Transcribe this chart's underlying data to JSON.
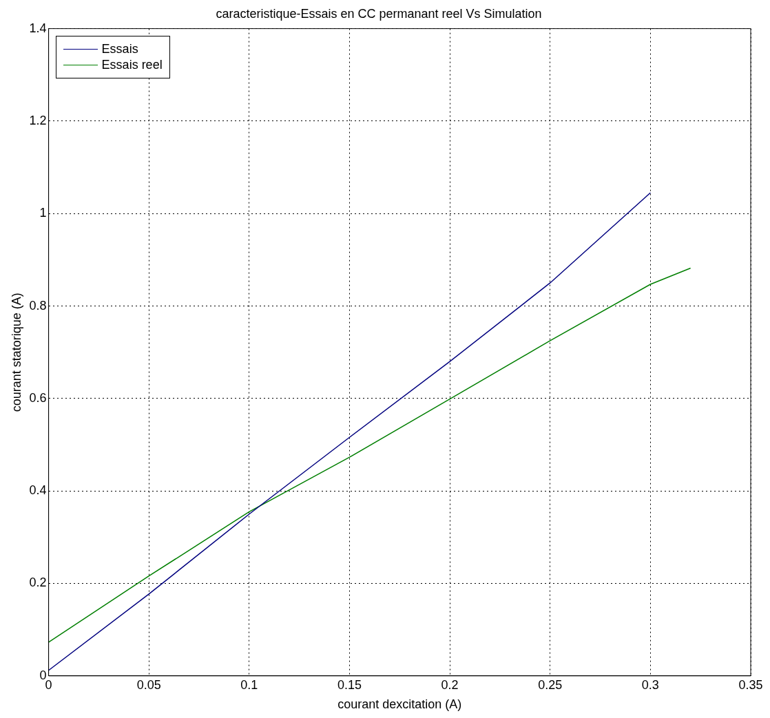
{
  "chart_data": {
    "type": "line",
    "title": "caracteristique-Essais en CC permanant reel Vs Simulation",
    "xlabel": "courant dexcitation (A)",
    "ylabel": "courant statorique (A)",
    "series": [
      {
        "name": "Essais",
        "color": "#00007f",
        "x": [
          0,
          0.05,
          0.1,
          0.15,
          0.2,
          0.25,
          0.3
        ],
        "values": [
          0.012,
          0.177,
          0.35,
          0.516,
          0.68,
          0.85,
          1.045
        ]
      },
      {
        "name": "Essais reel",
        "color": "#007f00",
        "x": [
          0,
          0.05,
          0.1,
          0.15,
          0.2,
          0.25,
          0.3,
          0.32
        ],
        "values": [
          0.073,
          0.216,
          0.355,
          0.473,
          0.599,
          0.725,
          0.847,
          0.882
        ]
      }
    ],
    "xlim": [
      0,
      0.35
    ],
    "xticks": [
      0,
      0.05,
      0.1,
      0.15,
      0.2,
      0.25,
      0.3,
      0.35
    ],
    "ylim": [
      0,
      1.4
    ],
    "yticks": [
      0,
      0.2,
      0.4,
      0.6,
      0.8,
      1,
      1.2,
      1.4
    ],
    "grid": true,
    "legend": "top left",
    "marker": "none",
    "line_style": "solid"
  }
}
